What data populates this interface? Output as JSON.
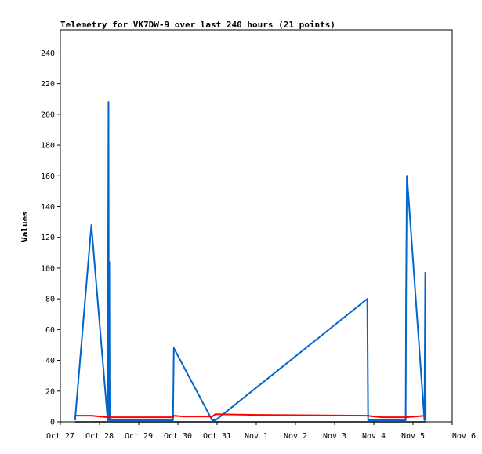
{
  "chart_data": {
    "type": "line",
    "title": "Telemetry for VK7DW-9 over last 240 hours (21 points)",
    "xlabel": "",
    "ylabel": "Values",
    "x_ticks": [
      "Oct 27",
      "Oct 28",
      "Oct 29",
      "Oct 30",
      "Oct 31",
      "Nov 1",
      "Nov 2",
      "Nov 3",
      "Nov 4",
      "Nov 5",
      "Nov 6"
    ],
    "y_ticks": [
      "0",
      "20",
      "40",
      "60",
      "80",
      "100",
      "120",
      "140",
      "160",
      "180",
      "200",
      "220",
      "240"
    ],
    "xlim": [
      "Oct 27 00:00",
      "Nov 6 00:00"
    ],
    "ylim": [
      0,
      255
    ],
    "grid": false,
    "series": [
      {
        "color": "#0066cc",
        "points": [
          [
            "Oct 27 09:00",
            1
          ],
          [
            "Oct 27 19:00",
            128
          ],
          [
            "Oct 28 05:00",
            1
          ],
          [
            "Oct 28 05:30",
            208
          ],
          [
            "Oct 28 05:45",
            1
          ],
          [
            "Oct 28 06:00",
            104
          ],
          [
            "Oct 28 06:15",
            1
          ],
          [
            "Oct 29 21:00",
            1
          ],
          [
            "Oct 29 21:30",
            48
          ],
          [
            "Oct 30 21:00",
            1
          ],
          [
            "Oct 30 23:00",
            1
          ],
          [
            "Nov 3 20:00",
            80
          ],
          [
            "Nov 3 20:15",
            40
          ],
          [
            "Nov 3 20:30",
            1
          ],
          [
            "Nov 4 19:30",
            1
          ],
          [
            "Nov 4 19:45",
            80
          ],
          [
            "Nov 4 20:15",
            160
          ],
          [
            "Nov 4 21:00",
            150
          ],
          [
            "Nov 5 07:00",
            1
          ],
          [
            "Nov 5 07:30",
            97
          ],
          [
            "Nov 5 07:45",
            1
          ]
        ]
      },
      {
        "color": "#ff0000",
        "points": [
          [
            "Oct 27 09:00",
            4
          ],
          [
            "Oct 27 19:00",
            4
          ],
          [
            "Oct 28 00:00",
            3.5
          ],
          [
            "Oct 28 05:00",
            3
          ],
          [
            "Oct 28 06:15",
            3
          ],
          [
            "Oct 29 21:00",
            3
          ],
          [
            "Oct 29 21:30",
            4
          ],
          [
            "Oct 30 03:00",
            3.5
          ],
          [
            "Oct 30 21:00",
            3.5
          ],
          [
            "Oct 30 23:00",
            5
          ],
          [
            "Nov 1 00:00",
            4.5
          ],
          [
            "Nov 3 20:00",
            4
          ],
          [
            "Nov 4 00:00",
            3.5
          ],
          [
            "Nov 4 05:00",
            3
          ],
          [
            "Nov 4 19:45",
            3
          ],
          [
            "Nov 5 07:45",
            4
          ]
        ]
      },
      {
        "color": "#000000",
        "points": [
          [
            "Oct 27 09:00",
            0
          ],
          [
            "Nov 5 07:45",
            0
          ]
        ]
      }
    ]
  }
}
